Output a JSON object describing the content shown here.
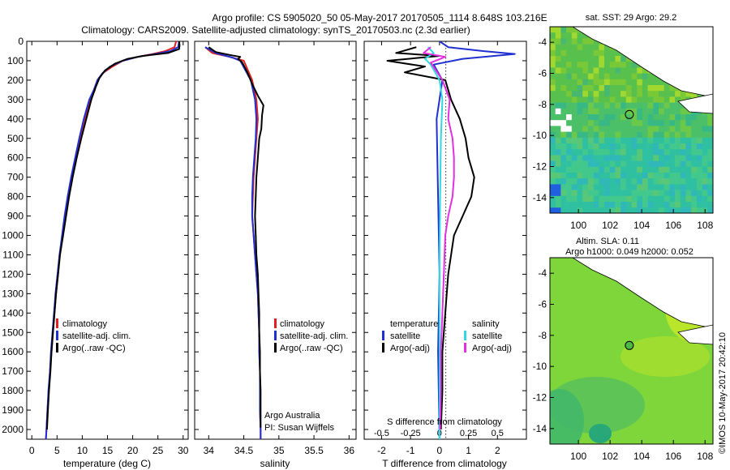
{
  "header": {
    "line1": "Argo profile: CS 5905020_50 05-May-2017 20170505_1114 8.648S 103.216E",
    "line2": "Climatology: CARS2009. Satellite-adjusted climatology: synTS_20170503.nc (2.3d earlier)"
  },
  "colors": {
    "climatology": "#e02020",
    "satellite": "#2030d0",
    "argo": "#000000",
    "sal_satellite": "#30d8e0",
    "sal_argo": "#e030e0"
  },
  "chart_data": [
    {
      "id": "temperature",
      "type": "line",
      "xlabel": "temperature (deg C)",
      "ylabel": "",
      "xlim": [
        -1,
        31
      ],
      "ylim": [
        2050,
        0
      ],
      "xticks": [
        0,
        5,
        10,
        15,
        20,
        25,
        30
      ],
      "yticks": [
        0,
        100,
        200,
        300,
        400,
        500,
        600,
        700,
        800,
        900,
        1000,
        1100,
        1200,
        1300,
        1400,
        1500,
        1600,
        1700,
        1800,
        1900,
        2000
      ],
      "legend": [
        "climatology",
        "satellite-adj. clim.",
        "Argo(..raw -QC)"
      ],
      "legend_position": "lower-center",
      "series": [
        {
          "name": "climatology",
          "color": "#e02020",
          "points": [
            [
              28.6,
              0
            ],
            [
              28.3,
              30
            ],
            [
              26.5,
              50
            ],
            [
              24,
              65
            ],
            [
              21,
              80
            ],
            [
              18,
              100
            ],
            [
              16,
              130
            ],
            [
              14,
              165
            ],
            [
              13,
              200
            ],
            [
              12.5,
              250
            ],
            [
              11.6,
              300
            ],
            [
              10.5,
              400
            ],
            [
              9.5,
              500
            ],
            [
              8.7,
              600
            ],
            [
              7.9,
              700
            ],
            [
              7.2,
              800
            ],
            [
              6.6,
              900
            ],
            [
              6.1,
              1000
            ],
            [
              5.5,
              1100
            ],
            [
              5.2,
              1200
            ],
            [
              4.8,
              1300
            ],
            [
              4.5,
              1400
            ],
            [
              4.2,
              1500
            ],
            [
              3.9,
              1600
            ],
            [
              3.6,
              1700
            ],
            [
              3.4,
              1800
            ],
            [
              3.1,
              1900
            ],
            [
              2.9,
              2000
            ],
            [
              2.8,
              2050
            ]
          ]
        },
        {
          "name": "satellite-adj. clim.",
          "color": "#2030d0",
          "points": [
            [
              29.2,
              0
            ],
            [
              29.0,
              30
            ],
            [
              27.5,
              50
            ],
            [
              24.5,
              65
            ],
            [
              21,
              80
            ],
            [
              18,
              100
            ],
            [
              15.5,
              130
            ],
            [
              14,
              165
            ],
            [
              13,
              200
            ],
            [
              12.3,
              250
            ],
            [
              11.4,
              300
            ],
            [
              10.3,
              400
            ],
            [
              9.4,
              500
            ],
            [
              8.6,
              600
            ],
            [
              7.8,
              700
            ],
            [
              7.1,
              800
            ],
            [
              6.5,
              900
            ],
            [
              6.0,
              1000
            ],
            [
              5.5,
              1100
            ],
            [
              5.1,
              1200
            ],
            [
              4.7,
              1300
            ],
            [
              4.4,
              1400
            ],
            [
              4.1,
              1500
            ],
            [
              3.8,
              1600
            ],
            [
              3.6,
              1700
            ],
            [
              3.3,
              1800
            ],
            [
              3.1,
              1900
            ],
            [
              2.9,
              2000
            ],
            [
              2.8,
              2050
            ]
          ]
        },
        {
          "name": "Argo(..raw -QC)",
          "color": "#000000",
          "points": [
            [
              29.2,
              0
            ],
            [
              29.3,
              20
            ],
            [
              29.2,
              40
            ],
            [
              27,
              60
            ],
            [
              22,
              75
            ],
            [
              19,
              90
            ],
            [
              16.5,
              115
            ],
            [
              14.5,
              150
            ],
            [
              13.4,
              190
            ],
            [
              12.6,
              240
            ],
            [
              11.8,
              300
            ],
            [
              10.8,
              400
            ],
            [
              9.8,
              500
            ],
            [
              8.9,
              600
            ],
            [
              8.1,
              700
            ],
            [
              7.4,
              800
            ],
            [
              6.8,
              900
            ],
            [
              6.2,
              1000
            ],
            [
              5.6,
              1100
            ],
            [
              5.2,
              1200
            ],
            [
              4.8,
              1300
            ],
            [
              4.5,
              1400
            ],
            [
              4.2,
              1500
            ],
            [
              3.9,
              1600
            ],
            [
              3.7,
              1700
            ],
            [
              3.4,
              1800
            ],
            [
              3.2,
              1900
            ],
            [
              3.0,
              2000
            ]
          ]
        }
      ]
    },
    {
      "id": "salinity",
      "type": "line",
      "xlabel": "salinity",
      "ylabel": "",
      "xlim": [
        33.8,
        36.1
      ],
      "ylim": [
        2050,
        0
      ],
      "xticks": [
        34,
        34.5,
        35,
        35.5,
        36
      ],
      "legend": [
        "climatology",
        "satellite-adj. clim.",
        "Argo(..raw -QC)"
      ],
      "legend_position": "lower-right",
      "series": [
        {
          "name": "climatology",
          "color": "#e02020",
          "points": [
            [
              33.95,
              30
            ],
            [
              34.05,
              60
            ],
            [
              34.3,
              80
            ],
            [
              34.5,
              100
            ],
            [
              34.62,
              200
            ],
            [
              34.68,
              300
            ],
            [
              34.7,
              400
            ],
            [
              34.68,
              500
            ],
            [
              34.66,
              600
            ],
            [
              34.64,
              700
            ],
            [
              34.63,
              800
            ],
            [
              34.62,
              900
            ],
            [
              34.64,
              1000
            ],
            [
              34.66,
              1100
            ],
            [
              34.68,
              1200
            ],
            [
              34.7,
              1300
            ],
            [
              34.71,
              1400
            ],
            [
              34.72,
              1500
            ],
            [
              34.72,
              1600
            ],
            [
              34.73,
              1700
            ],
            [
              34.73,
              1800
            ],
            [
              34.73,
              1900
            ],
            [
              34.74,
              2000
            ],
            [
              34.74,
              2050
            ]
          ]
        },
        {
          "name": "satellite-adj. clim.",
          "color": "#2030d0",
          "points": [
            [
              33.95,
              30
            ],
            [
              34.1,
              60
            ],
            [
              34.35,
              85
            ],
            [
              34.45,
              100
            ],
            [
              34.6,
              200
            ],
            [
              34.66,
              300
            ],
            [
              34.68,
              400
            ],
            [
              34.67,
              500
            ],
            [
              34.65,
              600
            ],
            [
              34.63,
              700
            ],
            [
              34.62,
              800
            ],
            [
              34.62,
              900
            ],
            [
              34.64,
              1000
            ],
            [
              34.66,
              1100
            ],
            [
              34.68,
              1200
            ],
            [
              34.7,
              1300
            ],
            [
              34.71,
              1400
            ],
            [
              34.72,
              1500
            ],
            [
              34.72,
              1600
            ],
            [
              34.73,
              1700
            ],
            [
              34.73,
              1800
            ],
            [
              34.73,
              1900
            ],
            [
              34.74,
              2000
            ],
            [
              34.74,
              2050
            ]
          ]
        },
        {
          "name": "Argo(..raw -QC)",
          "color": "#000000",
          "points": [
            [
              34.0,
              30
            ],
            [
              34.1,
              55
            ],
            [
              34.3,
              70
            ],
            [
              34.45,
              80
            ],
            [
              34.42,
              90
            ],
            [
              34.48,
              110
            ],
            [
              34.55,
              160
            ],
            [
              34.62,
              220
            ],
            [
              34.7,
              280
            ],
            [
              34.78,
              330
            ],
            [
              34.76,
              380
            ],
            [
              34.75,
              450
            ],
            [
              34.72,
              500
            ],
            [
              34.7,
              600
            ],
            [
              34.68,
              700
            ],
            [
              34.67,
              800
            ],
            [
              34.66,
              900
            ],
            [
              34.67,
              1000
            ],
            [
              34.68,
              1100
            ],
            [
              34.7,
              1200
            ],
            [
              34.71,
              1300
            ],
            [
              34.72,
              1400
            ],
            [
              34.72,
              1500
            ],
            [
              34.73,
              1600
            ],
            [
              34.73,
              1700
            ],
            [
              34.74,
              1800
            ],
            [
              34.74,
              1900
            ],
            [
              34.74,
              1990
            ]
          ]
        }
      ]
    },
    {
      "id": "difference",
      "type": "line",
      "xlabel": "T difference from climatology",
      "xlabel_secondary": "S difference from climatology",
      "ylabel": "",
      "xlim": [
        -2.6,
        3.0
      ],
      "ylim": [
        2050,
        0
      ],
      "xticks": [
        -2,
        -1,
        0,
        1,
        2
      ],
      "sticks": [
        -0.5,
        -0.25,
        0,
        0.25,
        0.5
      ],
      "legend_temperature": {
        "title": "temperature",
        "items": [
          "satellite",
          "Argo(-adj)"
        ]
      },
      "legend_salinity": {
        "title": "salinity",
        "items": [
          "satellite",
          "Argo(-adj)"
        ]
      },
      "legend_position": "lower-center",
      "series": [
        {
          "name": "T satellite",
          "color": "#2030d0",
          "points": [
            [
              0,
              0
            ],
            [
              0.3,
              30
            ],
            [
              1.5,
              50
            ],
            [
              2.6,
              65
            ],
            [
              0.8,
              90
            ],
            [
              -0.2,
              120
            ],
            [
              0.1,
              200
            ],
            [
              -0.1,
              400
            ],
            [
              -0.05,
              800
            ],
            [
              0,
              1200
            ],
            [
              -0.05,
              1600
            ],
            [
              0,
              2050
            ]
          ]
        },
        {
          "name": "T Argo(-adj)",
          "color": "#000000",
          "points": [
            [
              -0.8,
              30
            ],
            [
              -1.5,
              60
            ],
            [
              0,
              75
            ],
            [
              -1.8,
              100
            ],
            [
              -0.5,
              130
            ],
            [
              -1.2,
              160
            ],
            [
              0.2,
              200
            ],
            [
              0.4,
              300
            ],
            [
              0.7,
              400
            ],
            [
              0.9,
              500
            ],
            [
              1.0,
              600
            ],
            [
              1.2,
              700
            ],
            [
              1.1,
              800
            ],
            [
              0.8,
              900
            ],
            [
              0.5,
              1000
            ],
            [
              0.3,
              1200
            ],
            [
              0.2,
              1400
            ],
            [
              0.1,
              1600
            ],
            [
              0.1,
              1800
            ],
            [
              0.05,
              2000
            ]
          ]
        },
        {
          "name": "S satellite",
          "color": "#30d8e0",
          "points": [
            [
              -0.4,
              30
            ],
            [
              -0.2,
              60
            ],
            [
              -0.5,
              90
            ],
            [
              -0.3,
              120
            ],
            [
              0,
              200
            ],
            [
              0.1,
              300
            ],
            [
              0.05,
              500
            ],
            [
              0.02,
              800
            ],
            [
              0,
              1200
            ],
            [
              0,
              1600
            ],
            [
              0,
              2050
            ]
          ]
        },
        {
          "name": "S Argo(-adj)",
          "color": "#e030e0",
          "points": [
            [
              -0.3,
              30
            ],
            [
              -0.55,
              60
            ],
            [
              0.2,
              80
            ],
            [
              -0.3,
              110
            ],
            [
              0.1,
              200
            ],
            [
              0.35,
              300
            ],
            [
              0.3,
              400
            ],
            [
              0.45,
              500
            ],
            [
              0.5,
              600
            ],
            [
              0.5,
              700
            ],
            [
              0.45,
              800
            ],
            [
              0.3,
              900
            ],
            [
              0.2,
              1000
            ],
            [
              0.15,
              1200
            ],
            [
              0.1,
              1400
            ],
            [
              0.05,
              1600
            ],
            [
              0.05,
              1800
            ],
            [
              0.02,
              2000
            ]
          ]
        }
      ]
    }
  ],
  "maps": [
    {
      "id": "sst-map",
      "title": "sat. SST: 29  Argo: 29.2",
      "xticks": [
        100,
        102,
        104,
        106,
        108
      ],
      "yticks": [
        -4,
        -6,
        -8,
        -10,
        -12,
        -14
      ],
      "xlim": [
        98.2,
        108.5
      ],
      "ylim": [
        -15,
        -3
      ]
    },
    {
      "id": "sla-map",
      "title": "Altim. SLA: 0.11",
      "subtitle": "Argo h1000: 0.049 h2000: 0.052",
      "xticks": [
        100,
        102,
        104,
        106,
        108
      ],
      "yticks": [
        -4,
        -6,
        -8,
        -10,
        -12,
        -14
      ],
      "xlim": [
        98.2,
        108.5
      ],
      "ylim": [
        -15,
        -3
      ]
    }
  ],
  "float_position": {
    "lon": 103.216,
    "lat": -8.648
  },
  "credits": {
    "line1": "Argo Australia",
    "line2": "PI: Susan Wijffels",
    "stamp": "©IMOS 10-May-2017 20:42:10"
  }
}
